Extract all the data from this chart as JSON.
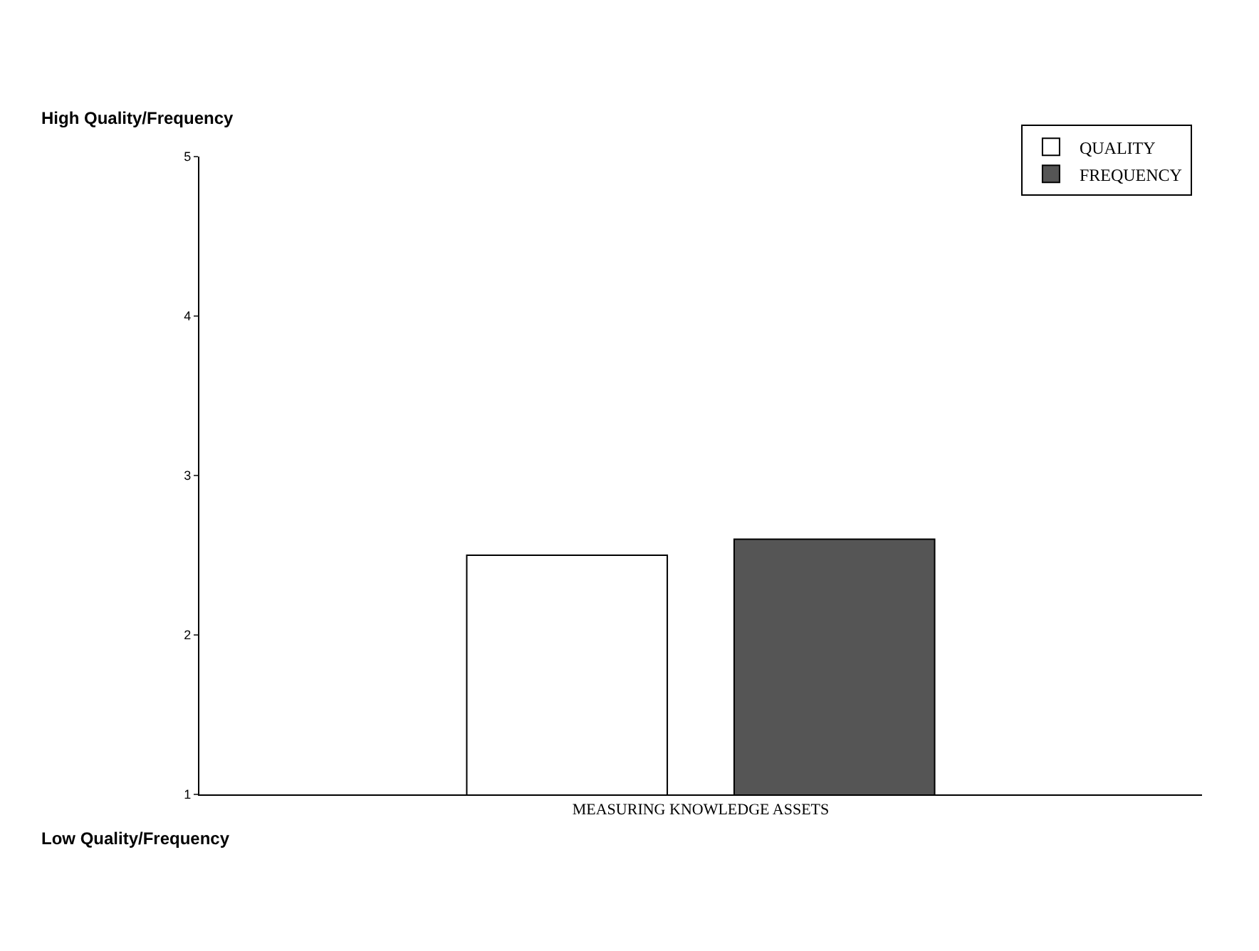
{
  "chart_data": {
    "type": "bar",
    "categories": [
      "MEASURING KNOWLEDGE ASSETS"
    ],
    "series": [
      {
        "name": "QUALITY",
        "color": "#ffffff",
        "values": [
          2.5
        ]
      },
      {
        "name": "FREQUENCY",
        "color": "#555555",
        "values": [
          2.6
        ]
      }
    ],
    "ylim": [
      1,
      5
    ],
    "yticks": [
      1,
      2,
      3,
      4,
      5
    ],
    "annotations": [
      "High Quality/Frequency",
      "Low Quality/Frequency"
    ],
    "legend": "top right"
  }
}
